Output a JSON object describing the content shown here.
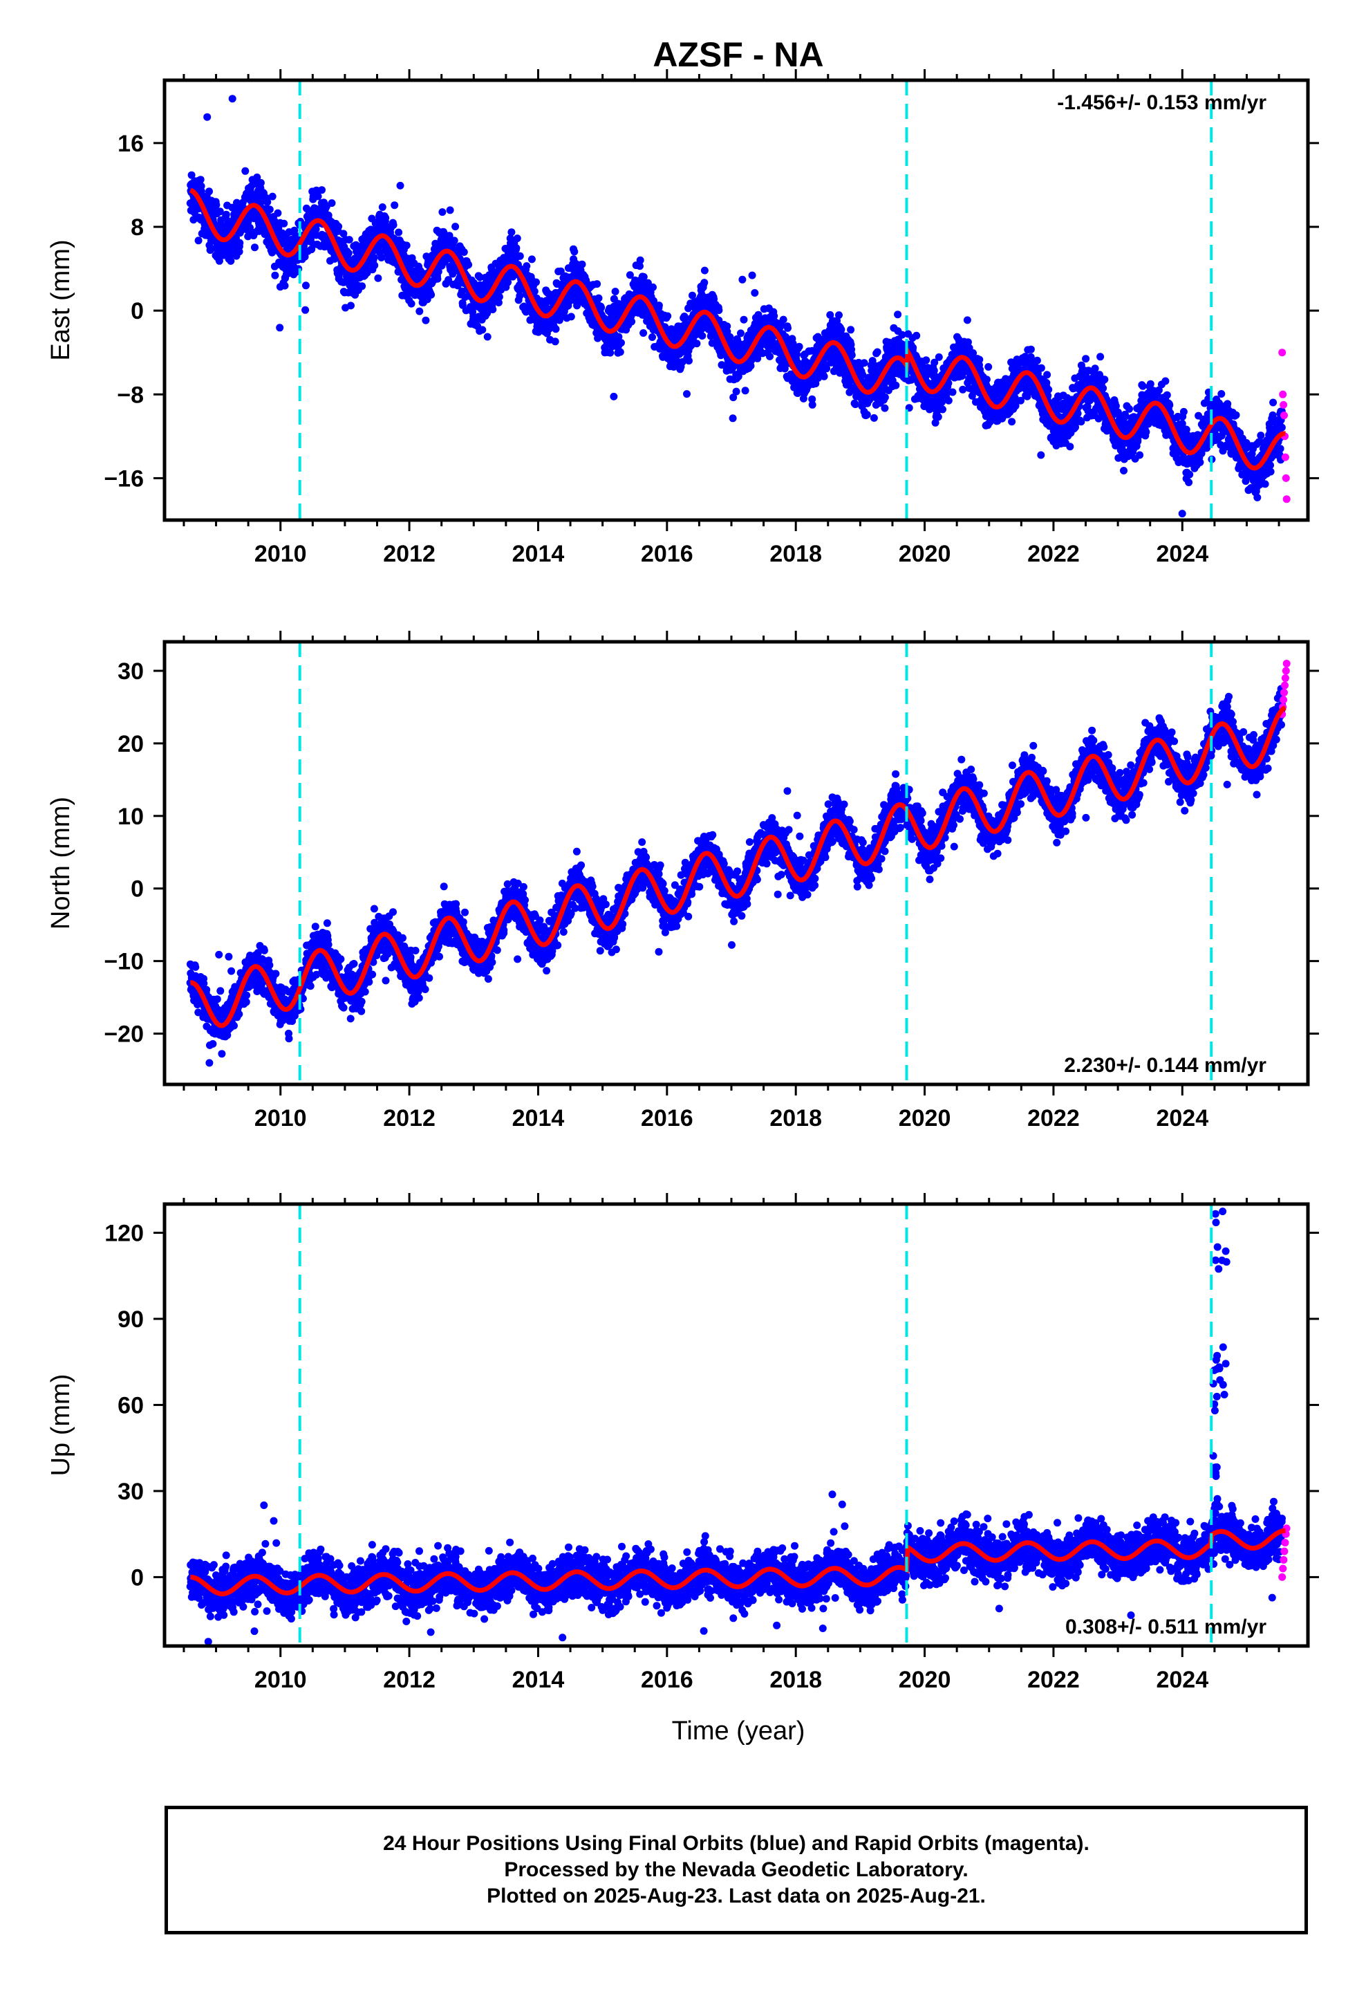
{
  "title": "AZSF - NA",
  "colors": {
    "final_orbits": "#0000ff",
    "rapid_orbits": "#ff00ff",
    "model_fit": "#ff0000",
    "event_lines": "#00e5e5",
    "frame": "#000000"
  },
  "chart_data": [
    {
      "type": "scatter",
      "component": "east",
      "ylabel": "East (mm)",
      "xlabel": "",
      "xlim": [
        2008.2,
        2025.95
      ],
      "ylim": [
        -20,
        22
      ],
      "xticks": [
        "2010",
        "2012",
        "2014",
        "2016",
        "2018",
        "2020",
        "2022",
        "2024"
      ],
      "yticks": [
        "16",
        "8",
        "0",
        "−8",
        "−16"
      ],
      "ytick_values": [
        16,
        8,
        0,
        -8,
        -16
      ],
      "rate_text": "-1.456+/- 0.153 mm/yr",
      "rate_position": "top-right",
      "event_lines": [
        2010.3,
        2019.72,
        2024.45
      ],
      "model": {
        "trend_start_value": 9.5,
        "rate_mm_per_yr": -1.456,
        "annual_amplitude": 2.0,
        "offset_2010": -2.0,
        "offset_2019": 1.5,
        "noise_sd": 1.2
      },
      "series": [
        {
          "name": "Final Orbits (blue)",
          "x_range": [
            2008.6,
            2025.55
          ],
          "points": 5000
        },
        {
          "name": "Rapid Orbits (magenta)",
          "x_range": [
            2025.55,
            2025.63
          ],
          "values_approx": [
            -4,
            -8,
            -9,
            -10,
            -12,
            -14,
            -16,
            -18
          ]
        },
        {
          "name": "Model fit (red)",
          "x_range": [
            2008.6,
            2025.6
          ]
        }
      ]
    },
    {
      "type": "scatter",
      "component": "north",
      "ylabel": "North (mm)",
      "xlabel": "",
      "xlim": [
        2008.2,
        2025.95
      ],
      "ylim": [
        -27,
        34
      ],
      "xticks": [
        "2010",
        "2012",
        "2014",
        "2016",
        "2018",
        "2020",
        "2022",
        "2024"
      ],
      "yticks": [
        "30",
        "20",
        "10",
        "0",
        "−10",
        "−20"
      ],
      "ytick_values": [
        30,
        20,
        10,
        0,
        -10,
        -20
      ],
      "rate_text": "2.230+/- 0.144 mm/yr",
      "rate_position": "bottom-right",
      "event_lines": [
        2010.3,
        2019.72,
        2024.45
      ],
      "model": {
        "trend_start_value": -16.5,
        "rate_mm_per_yr": 2.23,
        "annual_amplitude": 3.5,
        "noise_sd": 1.5
      },
      "series": [
        {
          "name": "Final Orbits (blue)",
          "x_range": [
            2008.6,
            2025.55
          ],
          "points": 5000
        },
        {
          "name": "Rapid Orbits (magenta)",
          "x_range": [
            2025.55,
            2025.63
          ],
          "values_approx": [
            24,
            25,
            26,
            27,
            28,
            29,
            30,
            31
          ]
        },
        {
          "name": "Model fit (red)",
          "x_range": [
            2008.6,
            2025.6
          ]
        }
      ]
    },
    {
      "type": "scatter",
      "component": "up",
      "ylabel": "Up (mm)",
      "xlabel": "Time (year)",
      "xlim": [
        2008.2,
        2025.95
      ],
      "ylim": [
        -24,
        130
      ],
      "xticks": [
        "2010",
        "2012",
        "2014",
        "2016",
        "2018",
        "2020",
        "2022",
        "2024"
      ],
      "yticks": [
        "120",
        "90",
        "60",
        "30",
        "0"
      ],
      "ytick_values": [
        120,
        90,
        60,
        30,
        0
      ],
      "rate_text": "0.308+/- 0.511 mm/yr",
      "rate_position": "bottom-right",
      "event_lines": [
        2010.3,
        2019.72,
        2024.45
      ],
      "model": {
        "trend_start_value": -3,
        "rate_mm_per_yr": 0.308,
        "annual_amplitude": 3.0,
        "offset_2019": 8.0,
        "offset_2024": 3.0,
        "noise_sd": 4.0
      },
      "series": [
        {
          "name": "Final Orbits (blue)",
          "x_range": [
            2008.6,
            2025.55
          ],
          "points": 5000
        },
        {
          "name": "Rapid Orbits (magenta)",
          "x_range": [
            2025.55,
            2025.63
          ],
          "values_approx": [
            0,
            3,
            6,
            9,
            12,
            15,
            17
          ]
        },
        {
          "name": "Model fit (red)",
          "x_range": [
            2008.6,
            2025.6
          ]
        }
      ],
      "outlier_cluster": {
        "x_range": [
          2024.45,
          2024.85
        ],
        "values_approx": [
          25,
          35,
          40,
          60,
          65,
          70,
          75,
          78,
          110,
          113,
          125
        ]
      }
    }
  ],
  "footer": {
    "line1": "24 Hour Positions Using Final Orbits (blue) and Rapid Orbits (magenta).",
    "line2": "Processed by the Nevada Geodetic Laboratory.",
    "line3": "Plotted on 2025-Aug-23. Last data on 2025-Aug-21."
  }
}
